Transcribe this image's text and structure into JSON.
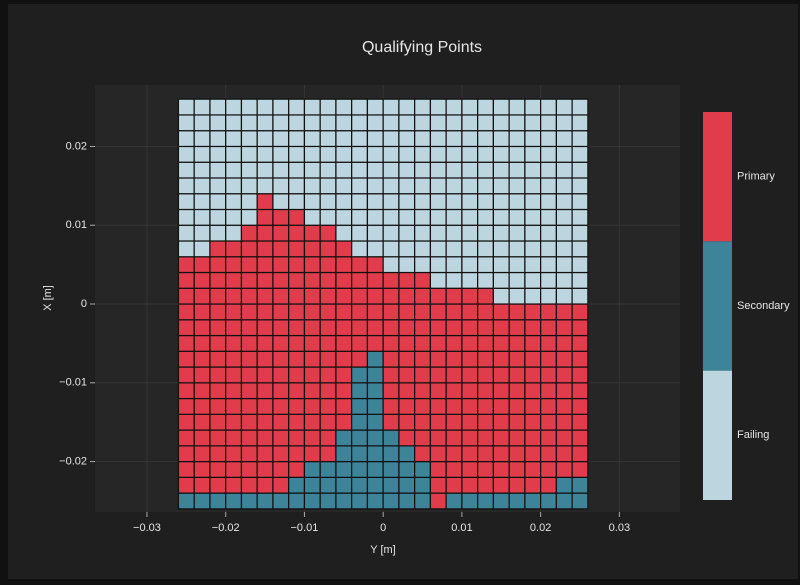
{
  "chart_data": {
    "type": "heatmap",
    "title": "Qualifying Points",
    "xlabel": "Y [m]",
    "ylabel": "X [m]",
    "x": [
      -0.025,
      -0.023,
      -0.021,
      -0.019,
      -0.017,
      -0.015,
      -0.013,
      -0.011,
      -0.009,
      -0.007,
      -0.005,
      -0.003,
      -0.001,
      0.001,
      0.003,
      0.005,
      0.007,
      0.009,
      0.011,
      0.013,
      0.015,
      0.017,
      0.019,
      0.021,
      0.023,
      0.025
    ],
    "y": [
      -0.025,
      -0.023,
      -0.021,
      -0.019,
      -0.017,
      -0.015,
      -0.013,
      -0.011,
      -0.009,
      -0.007,
      -0.005,
      -0.003,
      -0.001,
      0.001,
      0.003,
      0.005,
      0.007,
      0.009,
      0.011,
      0.013,
      0.015,
      0.017,
      0.019,
      0.021,
      0.023,
      0.025
    ],
    "z": [
      [
        1,
        1,
        1,
        1,
        1,
        1,
        1,
        1,
        1,
        1,
        1,
        1,
        1,
        1,
        1,
        1,
        2,
        1,
        1,
        1,
        1,
        1,
        1,
        1,
        1,
        1
      ],
      [
        2,
        2,
        2,
        2,
        2,
        2,
        2,
        1,
        1,
        1,
        1,
        1,
        1,
        1,
        1,
        1,
        2,
        2,
        2,
        2,
        2,
        2,
        2,
        2,
        1,
        1
      ],
      [
        2,
        2,
        2,
        2,
        2,
        2,
        2,
        2,
        1,
        1,
        1,
        1,
        1,
        1,
        1,
        1,
        2,
        2,
        2,
        2,
        2,
        2,
        2,
        2,
        2,
        2
      ],
      [
        2,
        2,
        2,
        2,
        2,
        2,
        2,
        2,
        2,
        2,
        1,
        1,
        1,
        1,
        1,
        2,
        2,
        2,
        2,
        2,
        2,
        2,
        2,
        2,
        2,
        2
      ],
      [
        2,
        2,
        2,
        2,
        2,
        2,
        2,
        2,
        2,
        2,
        1,
        1,
        1,
        1,
        2,
        2,
        2,
        2,
        2,
        2,
        2,
        2,
        2,
        2,
        2,
        2
      ],
      [
        2,
        2,
        2,
        2,
        2,
        2,
        2,
        2,
        2,
        2,
        2,
        1,
        1,
        2,
        2,
        2,
        2,
        2,
        2,
        2,
        2,
        2,
        2,
        2,
        2,
        2
      ],
      [
        2,
        2,
        2,
        2,
        2,
        2,
        2,
        2,
        2,
        2,
        2,
        1,
        1,
        2,
        2,
        2,
        2,
        2,
        2,
        2,
        2,
        2,
        2,
        2,
        2,
        2
      ],
      [
        2,
        2,
        2,
        2,
        2,
        2,
        2,
        2,
        2,
        2,
        2,
        1,
        1,
        2,
        2,
        2,
        2,
        2,
        2,
        2,
        2,
        2,
        2,
        2,
        2,
        2
      ],
      [
        2,
        2,
        2,
        2,
        2,
        2,
        2,
        2,
        2,
        2,
        2,
        1,
        1,
        2,
        2,
        2,
        2,
        2,
        2,
        2,
        2,
        2,
        2,
        2,
        2,
        2
      ],
      [
        2,
        2,
        2,
        2,
        2,
        2,
        2,
        2,
        2,
        2,
        2,
        2,
        1,
        2,
        2,
        2,
        2,
        2,
        2,
        2,
        2,
        2,
        2,
        2,
        2,
        2
      ],
      [
        2,
        2,
        2,
        2,
        2,
        2,
        2,
        2,
        2,
        2,
        2,
        2,
        2,
        2,
        2,
        2,
        2,
        2,
        2,
        2,
        2,
        2,
        2,
        2,
        2,
        2
      ],
      [
        2,
        2,
        2,
        2,
        2,
        2,
        2,
        2,
        2,
        2,
        2,
        2,
        2,
        2,
        2,
        2,
        2,
        2,
        2,
        2,
        2,
        2,
        2,
        2,
        2,
        2
      ],
      [
        2,
        2,
        2,
        2,
        2,
        2,
        2,
        2,
        2,
        2,
        2,
        2,
        2,
        2,
        2,
        2,
        2,
        2,
        2,
        2,
        2,
        2,
        2,
        2,
        2,
        2
      ],
      [
        2,
        2,
        2,
        2,
        2,
        2,
        2,
        2,
        2,
        2,
        2,
        2,
        2,
        2,
        2,
        2,
        2,
        2,
        2,
        2,
        0,
        0,
        0,
        0,
        0,
        0
      ],
      [
        2,
        2,
        2,
        2,
        2,
        2,
        2,
        2,
        2,
        2,
        2,
        2,
        2,
        2,
        2,
        2,
        0,
        0,
        0,
        0,
        0,
        0,
        0,
        0,
        0,
        0
      ],
      [
        2,
        2,
        2,
        2,
        2,
        2,
        2,
        2,
        2,
        2,
        2,
        2,
        2,
        0,
        0,
        0,
        0,
        0,
        0,
        0,
        0,
        0,
        0,
        0,
        0,
        0
      ],
      [
        0,
        0,
        2,
        2,
        2,
        2,
        2,
        2,
        2,
        2,
        2,
        0,
        0,
        0,
        0,
        0,
        0,
        0,
        0,
        0,
        0,
        0,
        0,
        0,
        0,
        0
      ],
      [
        0,
        0,
        0,
        0,
        2,
        2,
        2,
        2,
        2,
        2,
        0,
        0,
        0,
        0,
        0,
        0,
        0,
        0,
        0,
        0,
        0,
        0,
        0,
        0,
        0,
        0
      ],
      [
        0,
        0,
        0,
        0,
        0,
        2,
        2,
        2,
        0,
        0,
        0,
        0,
        0,
        0,
        0,
        0,
        0,
        0,
        0,
        0,
        0,
        0,
        0,
        0,
        0,
        0
      ],
      [
        0,
        0,
        0,
        0,
        0,
        2,
        0,
        0,
        0,
        0,
        0,
        0,
        0,
        0,
        0,
        0,
        0,
        0,
        0,
        0,
        0,
        0,
        0,
        0,
        0,
        0
      ],
      [
        0,
        0,
        0,
        0,
        0,
        0,
        0,
        0,
        0,
        0,
        0,
        0,
        0,
        0,
        0,
        0,
        0,
        0,
        0,
        0,
        0,
        0,
        0,
        0,
        0,
        0
      ],
      [
        0,
        0,
        0,
        0,
        0,
        0,
        0,
        0,
        0,
        0,
        0,
        0,
        0,
        0,
        0,
        0,
        0,
        0,
        0,
        0,
        0,
        0,
        0,
        0,
        0,
        0
      ],
      [
        0,
        0,
        0,
        0,
        0,
        0,
        0,
        0,
        0,
        0,
        0,
        0,
        0,
        0,
        0,
        0,
        0,
        0,
        0,
        0,
        0,
        0,
        0,
        0,
        0,
        0
      ],
      [
        0,
        0,
        0,
        0,
        0,
        0,
        0,
        0,
        0,
        0,
        0,
        0,
        0,
        0,
        0,
        0,
        0,
        0,
        0,
        0,
        0,
        0,
        0,
        0,
        0,
        0
      ],
      [
        0,
        0,
        0,
        0,
        0,
        0,
        0,
        0,
        0,
        0,
        0,
        0,
        0,
        0,
        0,
        0,
        0,
        0,
        0,
        0,
        0,
        0,
        0,
        0,
        0,
        0
      ],
      [
        0,
        0,
        0,
        0,
        0,
        0,
        0,
        0,
        0,
        0,
        0,
        0,
        0,
        0,
        0,
        0,
        0,
        0,
        0,
        0,
        0,
        0,
        0,
        0,
        0,
        0
      ]
    ],
    "colorscale": [
      "#bcd5de",
      "#3d8499",
      "#e03c4b"
    ],
    "zlim": [
      -0.5,
      2.5
    ],
    "zticks": [
      {
        "value": 2,
        "label": "Primary"
      },
      {
        "value": 1,
        "label": "Secondary"
      },
      {
        "value": 0,
        "label": "Failing"
      }
    ],
    "xlim": [
      -0.0366,
      0.0377
    ],
    "ylim": [
      -0.0264,
      0.0278
    ],
    "xticks": [
      {
        "value": -0.03,
        "label": "−0.03"
      },
      {
        "value": -0.02,
        "label": "−0.02"
      },
      {
        "value": -0.01,
        "label": "−0.01"
      },
      0,
      0.01,
      0.02,
      0.03
    ],
    "yticks": [
      {
        "value": -0.02,
        "label": "−0.02"
      },
      {
        "value": -0.01,
        "label": "−0.01"
      },
      0,
      0.01,
      0.02
    ],
    "grid": true
  }
}
